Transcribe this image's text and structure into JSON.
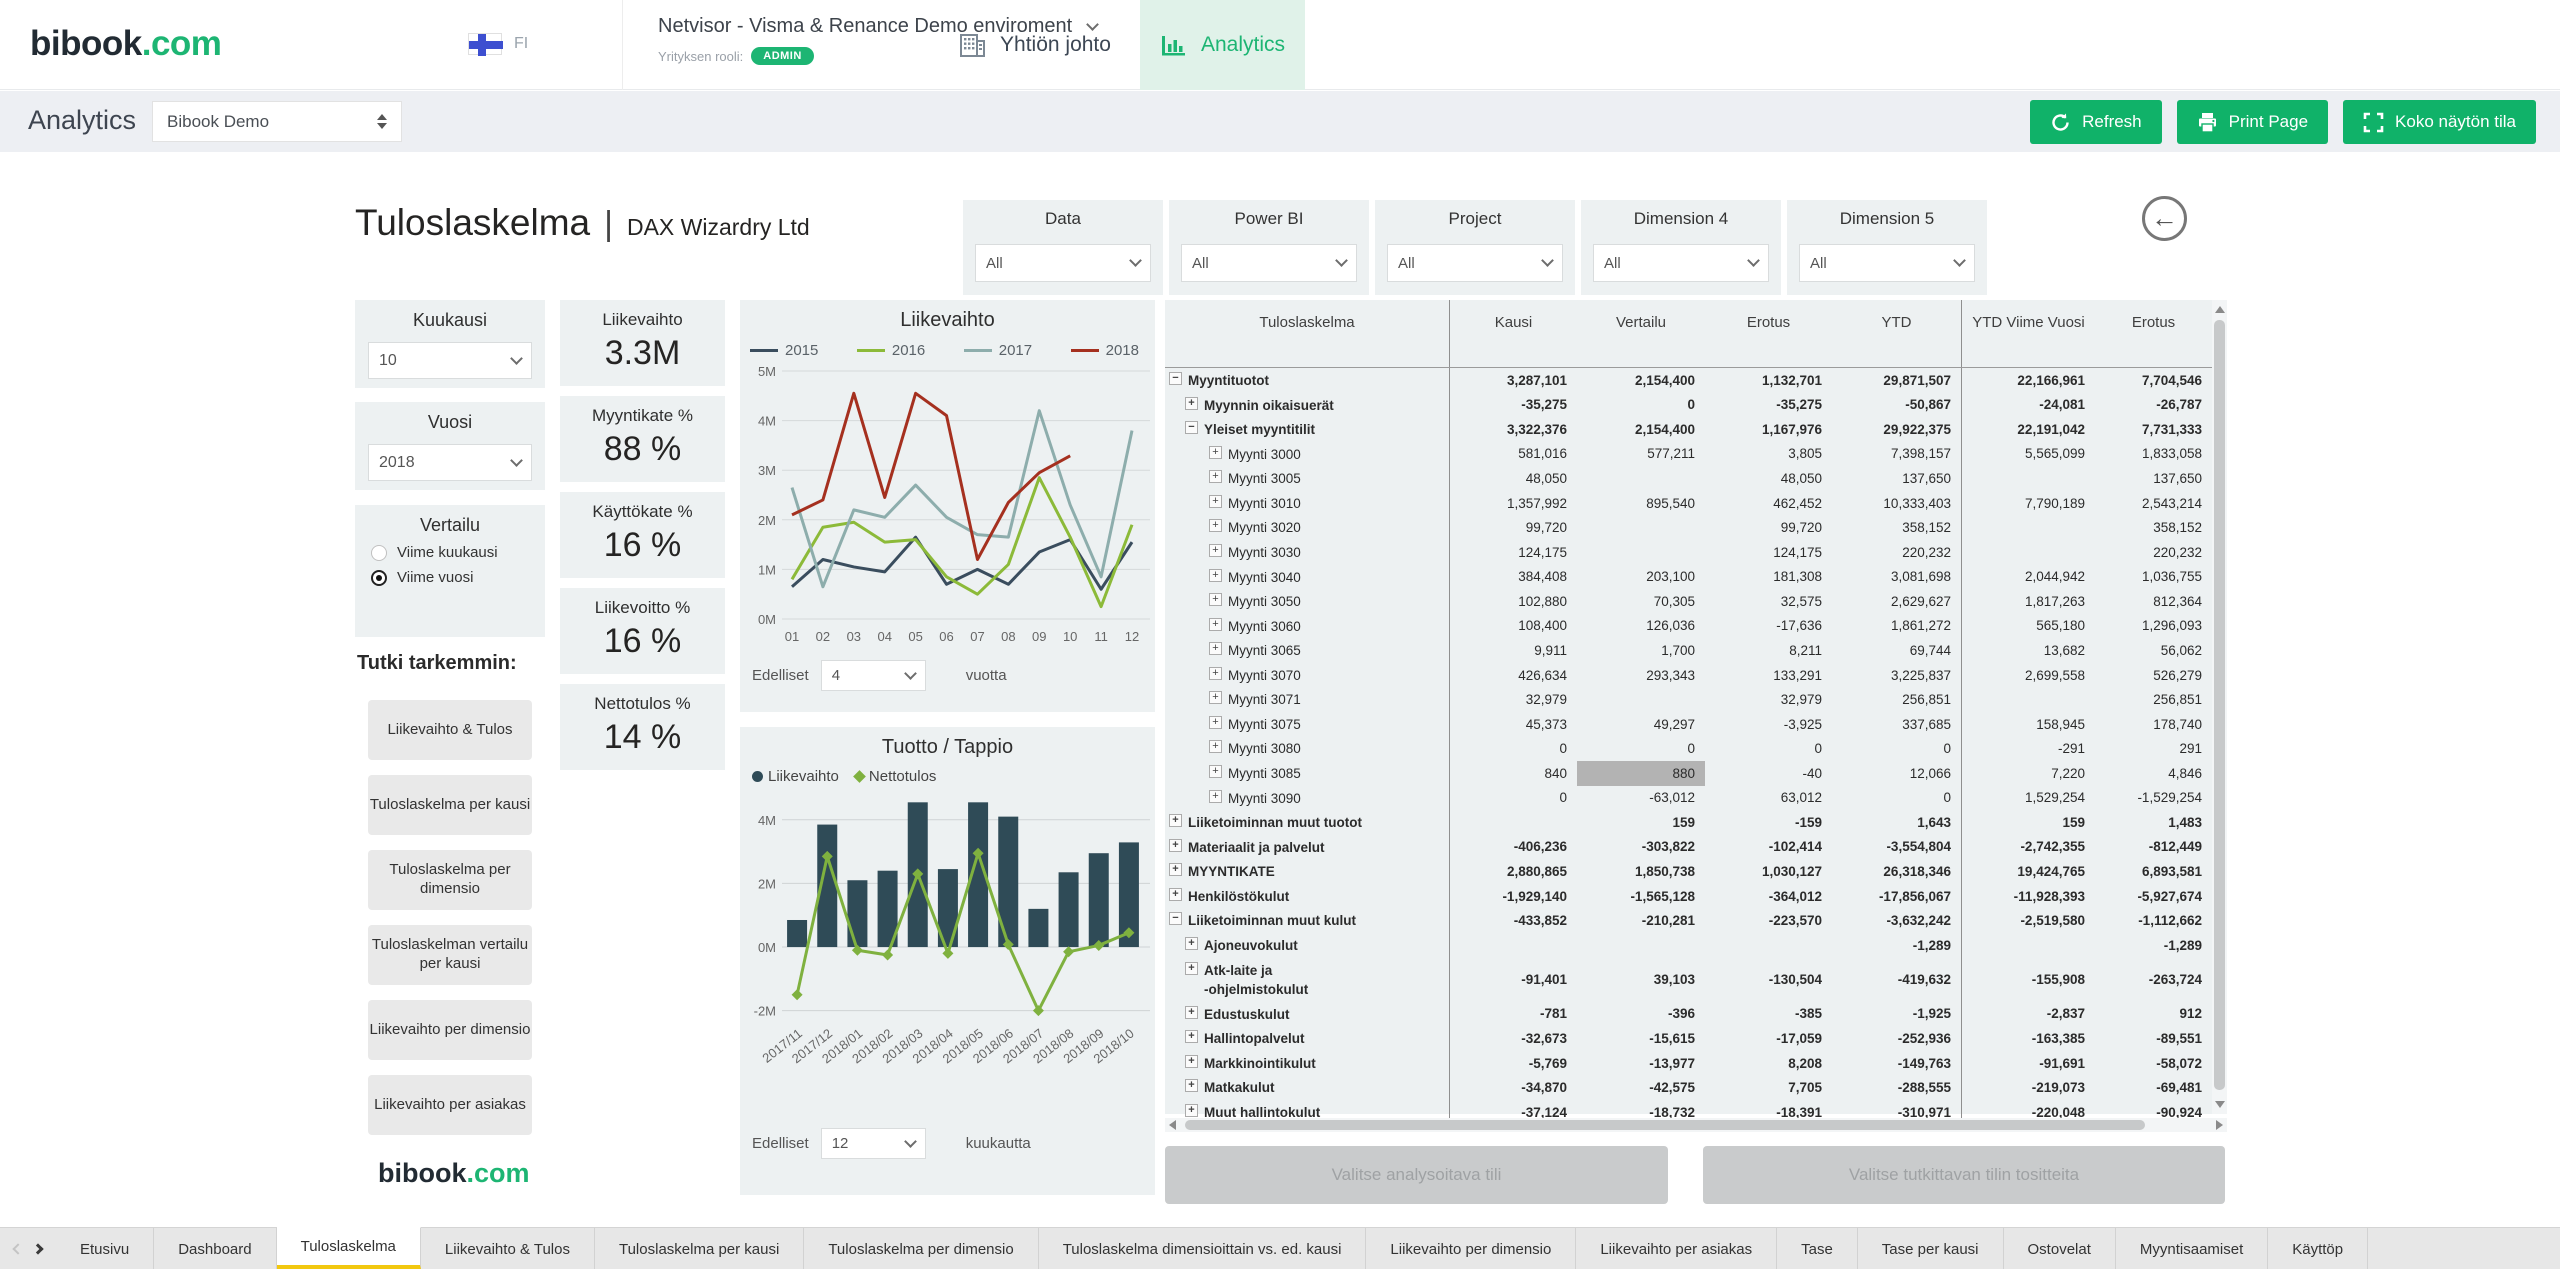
{
  "header": {
    "logo": {
      "brand": "bibook",
      "tld": ".com"
    },
    "language": "FI",
    "company_selector": {
      "name": "Netvisor - Visma & Renance Demo enviroment",
      "role_label": "Yrityksen rooli:",
      "role_badge": "ADMIN"
    },
    "nav_tabs": [
      {
        "label": "Yhtiön johto",
        "icon": "building-icon",
        "active": false
      },
      {
        "label": "Analytics",
        "icon": "bar-chart-icon",
        "active": true
      }
    ]
  },
  "toolbar": {
    "title": "Analytics",
    "workspace_select": "Bibook Demo",
    "buttons": [
      {
        "label": "Refresh",
        "icon": "refresh-icon"
      },
      {
        "label": "Print Page",
        "icon": "printer-icon"
      },
      {
        "label": "Koko näytön tila",
        "icon": "fullscreen-icon"
      }
    ]
  },
  "report": {
    "title": "Tuloslaskelma",
    "divider": "|",
    "subtitle": "DAX Wizardry Ltd",
    "filters": [
      {
        "label": "Data",
        "value": "All"
      },
      {
        "label": "Power BI",
        "value": "All"
      },
      {
        "label": "Project",
        "value": "All"
      },
      {
        "label": "Dimension 4",
        "value": "All"
      },
      {
        "label": "Dimension 5",
        "value": "All"
      }
    ],
    "sidebar": {
      "month": {
        "label": "Kuukausi",
        "value": "10"
      },
      "year": {
        "label": "Vuosi",
        "value": "2018"
      },
      "comparison": {
        "label": "Vertailu",
        "options": [
          {
            "label": "Viime kuukausi",
            "selected": false
          },
          {
            "label": "Viime vuosi",
            "selected": true
          }
        ]
      },
      "explore_label": "Tutki tarkemmin:",
      "buttons": [
        "Liikevaihto & Tulos",
        "Tuloslaskelma per kausi",
        "Tuloslaskelma per dimensio",
        "Tuloslaskelman vertailu per kausi",
        "Liikevaihto per dimensio",
        "Liikevaihto per asiakas"
      ],
      "footer_logo": {
        "brand": "bibook",
        "tld": ".com"
      }
    },
    "kpis": [
      {
        "label": "Liikevaihto",
        "value": "3.3M"
      },
      {
        "label": "Myyntikate %",
        "value": "88 %"
      },
      {
        "label": "Käyttökate %",
        "value": "16 %"
      },
      {
        "label": "Liikevoitto %",
        "value": "16 %"
      },
      {
        "label": "Nettotulos %",
        "value": "14 %"
      }
    ]
  },
  "chart_data": [
    {
      "id": "liikevaihto-by-year",
      "type": "line",
      "title": "Liikevaihto",
      "x": [
        "01",
        "02",
        "03",
        "04",
        "05",
        "06",
        "07",
        "08",
        "09",
        "10",
        "11",
        "12"
      ],
      "series": [
        {
          "name": "2015",
          "color": "#3a4d5e",
          "values": [
            0.65,
            1.2,
            1.05,
            0.95,
            1.65,
            0.7,
            1.0,
            0.7,
            1.35,
            1.6,
            0.6,
            1.55
          ]
        },
        {
          "name": "2016",
          "color": "#8cba39",
          "values": [
            0.8,
            1.85,
            1.95,
            1.55,
            1.6,
            0.85,
            0.5,
            1.1,
            2.85,
            1.65,
            0.25,
            1.9
          ]
        },
        {
          "name": "2017",
          "color": "#8dadac",
          "values": [
            2.65,
            0.65,
            2.2,
            2.05,
            2.7,
            2.05,
            1.7,
            1.65,
            4.2,
            2.3,
            0.85,
            3.8
          ]
        },
        {
          "name": "2018",
          "color": "#a5301f",
          "values": [
            2.1,
            2.4,
            4.55,
            2.45,
            4.55,
            4.1,
            1.2,
            2.35,
            2.95,
            3.29
          ]
        }
      ],
      "ylim": [
        0,
        5
      ],
      "ytick_vals": [
        0,
        1,
        2,
        3,
        4,
        5
      ],
      "yticks": [
        "0M",
        "1M",
        "2M",
        "3M",
        "4M",
        "5M"
      ],
      "grid": true,
      "legend_position": "top",
      "footer": {
        "prefix": "Edelliset",
        "value": "4",
        "suffix": "vuotta"
      }
    },
    {
      "id": "tuotto-tappio",
      "type": "bar",
      "title": "Tuotto / Tappio",
      "x": [
        "2017/11",
        "2017/12",
        "2018/01",
        "2018/02",
        "2018/03",
        "2018/04",
        "2018/05",
        "2018/06",
        "2018/07",
        "2018/08",
        "2018/09",
        "2018/10"
      ],
      "series": [
        {
          "name": "Liikevaihto",
          "type": "bar",
          "color": "#2f4b57",
          "values": [
            0.85,
            3.85,
            2.1,
            2.4,
            4.55,
            2.45,
            4.55,
            4.1,
            1.2,
            2.35,
            2.95,
            3.29
          ]
        },
        {
          "name": "Nettotulos",
          "type": "line",
          "marker": "diamond",
          "color": "#7fb13f",
          "values": [
            -1.5,
            2.85,
            -0.1,
            -0.25,
            2.3,
            -0.2,
            2.95,
            0.08,
            -2.0,
            -0.15,
            0.05,
            0.45
          ]
        }
      ],
      "ylim": [
        -2.2,
        4.78
      ],
      "ytick_vals": [
        -2,
        0,
        2,
        4
      ],
      "yticks": [
        "-2M",
        "0M",
        "2M",
        "4M"
      ],
      "grid": true,
      "legend_position": "top",
      "footer": {
        "prefix": "Edelliset",
        "value": "12",
        "suffix": "kuukautta"
      }
    }
  ],
  "table": {
    "columns": [
      "Tuloslaskelma",
      "Kausi",
      "Vertailu",
      "Erotus",
      "YTD",
      "YTD Viime Vuosi",
      "Erotus"
    ],
    "rows": [
      {
        "label": "Myyntituotot",
        "level": 0,
        "expand": "minus",
        "bold": true,
        "cells": [
          "3,287,101",
          "2,154,400",
          "1,132,701",
          "29,871,507",
          "22,166,961",
          "7,704,546"
        ]
      },
      {
        "label": "Myynnin oikaisuerät",
        "level": 1,
        "expand": "plus",
        "bold": true,
        "cells": [
          "-35,275",
          "0",
          "-35,275",
          "-50,867",
          "-24,081",
          "-26,787"
        ]
      },
      {
        "label": "Yleiset myyntitilit",
        "level": 1,
        "expand": "minus",
        "bold": true,
        "cells": [
          "3,322,376",
          "2,154,400",
          "1,167,976",
          "29,922,375",
          "22,191,042",
          "7,731,333"
        ]
      },
      {
        "label": "Myynti 3000",
        "level": 2,
        "expand": "plus",
        "bold": false,
        "cells": [
          "581,016",
          "577,211",
          "3,805",
          "7,398,157",
          "5,565,099",
          "1,833,058"
        ]
      },
      {
        "label": "Myynti 3005",
        "level": 2,
        "expand": "plus",
        "bold": false,
        "cells": [
          "48,050",
          "",
          "48,050",
          "137,650",
          "",
          "137,650"
        ]
      },
      {
        "label": "Myynti 3010",
        "level": 2,
        "expand": "plus",
        "bold": false,
        "cells": [
          "1,357,992",
          "895,540",
          "462,452",
          "10,333,403",
          "7,790,189",
          "2,543,214"
        ]
      },
      {
        "label": "Myynti 3020",
        "level": 2,
        "expand": "plus",
        "bold": false,
        "cells": [
          "99,720",
          "",
          "99,720",
          "358,152",
          "",
          "358,152"
        ]
      },
      {
        "label": "Myynti 3030",
        "level": 2,
        "expand": "plus",
        "bold": false,
        "cells": [
          "124,175",
          "",
          "124,175",
          "220,232",
          "",
          "220,232"
        ]
      },
      {
        "label": "Myynti 3040",
        "level": 2,
        "expand": "plus",
        "bold": false,
        "cells": [
          "384,408",
          "203,100",
          "181,308",
          "3,081,698",
          "2,044,942",
          "1,036,755"
        ]
      },
      {
        "label": "Myynti 3050",
        "level": 2,
        "expand": "plus",
        "bold": false,
        "cells": [
          "102,880",
          "70,305",
          "32,575",
          "2,629,627",
          "1,817,263",
          "812,364"
        ]
      },
      {
        "label": "Myynti 3060",
        "level": 2,
        "expand": "plus",
        "bold": false,
        "cells": [
          "108,400",
          "126,036",
          "-17,636",
          "1,861,272",
          "565,180",
          "1,296,093"
        ]
      },
      {
        "label": "Myynti 3065",
        "level": 2,
        "expand": "plus",
        "bold": false,
        "cells": [
          "9,911",
          "1,700",
          "8,211",
          "69,744",
          "13,682",
          "56,062"
        ]
      },
      {
        "label": "Myynti 3070",
        "level": 2,
        "expand": "plus",
        "bold": false,
        "cells": [
          "426,634",
          "293,343",
          "133,291",
          "3,225,837",
          "2,699,558",
          "526,279"
        ]
      },
      {
        "label": "Myynti 3071",
        "level": 2,
        "expand": "plus",
        "bold": false,
        "cells": [
          "32,979",
          "",
          "32,979",
          "256,851",
          "",
          "256,851"
        ]
      },
      {
        "label": "Myynti 3075",
        "level": 2,
        "expand": "plus",
        "bold": false,
        "cells": [
          "45,373",
          "49,297",
          "-3,925",
          "337,685",
          "158,945",
          "178,740"
        ]
      },
      {
        "label": "Myynti 3080",
        "level": 2,
        "expand": "plus",
        "bold": false,
        "cells": [
          "0",
          "0",
          "0",
          "0",
          "-291",
          "291"
        ]
      },
      {
        "label": "Myynti 3085",
        "level": 2,
        "expand": "plus",
        "bold": false,
        "highlight_col": 1,
        "cells": [
          "840",
          "880",
          "-40",
          "12,066",
          "7,220",
          "4,846"
        ]
      },
      {
        "label": "Myynti 3090",
        "level": 2,
        "expand": "plus",
        "bold": false,
        "cells": [
          "0",
          "-63,012",
          "63,012",
          "0",
          "1,529,254",
          "-1,529,254"
        ]
      },
      {
        "label": "Liiketoiminnan muut tuotot",
        "level": 0,
        "expand": "plus",
        "bold": true,
        "cells": [
          "",
          "159",
          "-159",
          "1,643",
          "159",
          "1,483"
        ]
      },
      {
        "label": "Materiaalit ja palvelut",
        "level": 0,
        "expand": "plus",
        "bold": true,
        "cells": [
          "-406,236",
          "-303,822",
          "-102,414",
          "-3,554,804",
          "-2,742,355",
          "-812,449"
        ]
      },
      {
        "label": "MYYNTIKATE",
        "level": 0,
        "expand": "plus",
        "bold": true,
        "cells": [
          "2,880,865",
          "1,850,738",
          "1,030,127",
          "26,318,346",
          "19,424,765",
          "6,893,581"
        ]
      },
      {
        "label": "Henkilöstökulut",
        "level": 0,
        "expand": "plus",
        "bold": true,
        "cells": [
          "-1,929,140",
          "-1,565,128",
          "-364,012",
          "-17,856,067",
          "-11,928,393",
          "-5,927,674"
        ]
      },
      {
        "label": "Liiketoiminnan muut kulut",
        "level": 0,
        "expand": "minus",
        "bold": true,
        "cells": [
          "-433,852",
          "-210,281",
          "-223,570",
          "-3,632,242",
          "-2,519,580",
          "-1,112,662"
        ]
      },
      {
        "label": "Ajoneuvokulut",
        "level": 1,
        "expand": "plus",
        "bold": true,
        "cells": [
          "",
          "",
          "",
          "-1,289",
          "",
          "-1,289"
        ]
      },
      {
        "label": "Atk-laite ja\n-ohjelmistokulut",
        "level": 1,
        "expand": "plus",
        "bold": true,
        "cells": [
          "-91,401",
          "39,103",
          "-130,504",
          "-419,632",
          "-155,908",
          "-263,724"
        ]
      },
      {
        "label": "Edustuskulut",
        "level": 1,
        "expand": "plus",
        "bold": true,
        "cells": [
          "-781",
          "-396",
          "-385",
          "-1,925",
          "-2,837",
          "912"
        ]
      },
      {
        "label": "Hallintopalvelut",
        "level": 1,
        "expand": "plus",
        "bold": true,
        "cells": [
          "-32,673",
          "-15,615",
          "-17,059",
          "-252,936",
          "-163,385",
          "-89,551"
        ]
      },
      {
        "label": "Markkinointikulut",
        "level": 1,
        "expand": "plus",
        "bold": true,
        "cells": [
          "-5,769",
          "-13,977",
          "8,208",
          "-149,763",
          "-91,691",
          "-58,072"
        ]
      },
      {
        "label": "Matkakulut",
        "level": 1,
        "expand": "plus",
        "bold": true,
        "cells": [
          "-34,870",
          "-42,575",
          "7,705",
          "-288,555",
          "-219,073",
          "-69,481"
        ]
      },
      {
        "label": "Muut hallintokulut",
        "level": 1,
        "expand": "plus",
        "bold": true,
        "cells": [
          "-37,124",
          "-18,732",
          "-18,391",
          "-310,971",
          "-220,048",
          "-90,924"
        ]
      }
    ]
  },
  "table_actions": [
    {
      "label": "Valitse analysoitava tili"
    },
    {
      "label": "Valitse tutkittavan tilin tositteita"
    }
  ],
  "footer_tabs": [
    {
      "label": "Etusivu",
      "active": false
    },
    {
      "label": "Dashboard",
      "active": false
    },
    {
      "label": "Tuloslaskelma",
      "active": true
    },
    {
      "label": "Liikevaihto & Tulos",
      "active": false
    },
    {
      "label": "Tuloslaskelma per kausi",
      "active": false
    },
    {
      "label": "Tuloslaskelma per dimensio",
      "active": false
    },
    {
      "label": "Tuloslaskelma dimensioittain vs. ed. kausi",
      "active": false
    },
    {
      "label": "Liikevaihto per dimensio",
      "active": false
    },
    {
      "label": "Liikevaihto per asiakas",
      "active": false
    },
    {
      "label": "Tase",
      "active": false
    },
    {
      "label": "Tase per kausi",
      "active": false
    },
    {
      "label": "Ostovelat",
      "active": false
    },
    {
      "label": "Myyntisaamiset",
      "active": false
    },
    {
      "label": "Käyttöp",
      "active": false
    }
  ]
}
